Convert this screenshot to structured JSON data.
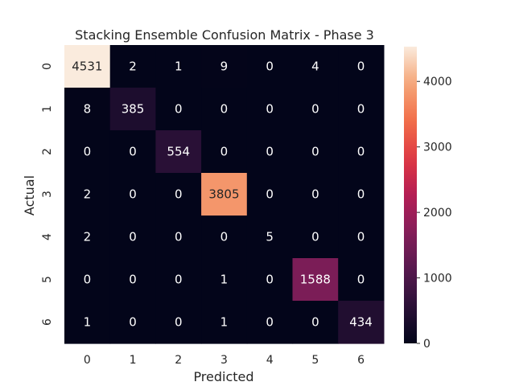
{
  "chart_data": {
    "type": "heatmap",
    "title": "Stacking Ensemble Confusion Matrix - Phase 3",
    "xlabel": "Predicted",
    "ylabel": "Actual",
    "x_categories": [
      "0",
      "1",
      "2",
      "3",
      "4",
      "5",
      "6"
    ],
    "y_categories": [
      "0",
      "1",
      "2",
      "3",
      "4",
      "5",
      "6"
    ],
    "values": [
      [
        4531,
        2,
        1,
        9,
        0,
        4,
        0
      ],
      [
        8,
        385,
        0,
        0,
        0,
        0,
        0
      ],
      [
        0,
        0,
        554,
        0,
        0,
        0,
        0
      ],
      [
        2,
        0,
        0,
        3805,
        0,
        0,
        0
      ],
      [
        2,
        0,
        0,
        0,
        5,
        0,
        0
      ],
      [
        0,
        0,
        0,
        1,
        0,
        1588,
        0
      ],
      [
        1,
        0,
        0,
        1,
        0,
        0,
        434
      ]
    ],
    "colorbar": {
      "ticks": [
        0,
        1000,
        2000,
        3000,
        4000
      ],
      "range": [
        0,
        4531
      ],
      "colormap": "rocket"
    },
    "grid": false,
    "legend": "colorbar-right"
  }
}
